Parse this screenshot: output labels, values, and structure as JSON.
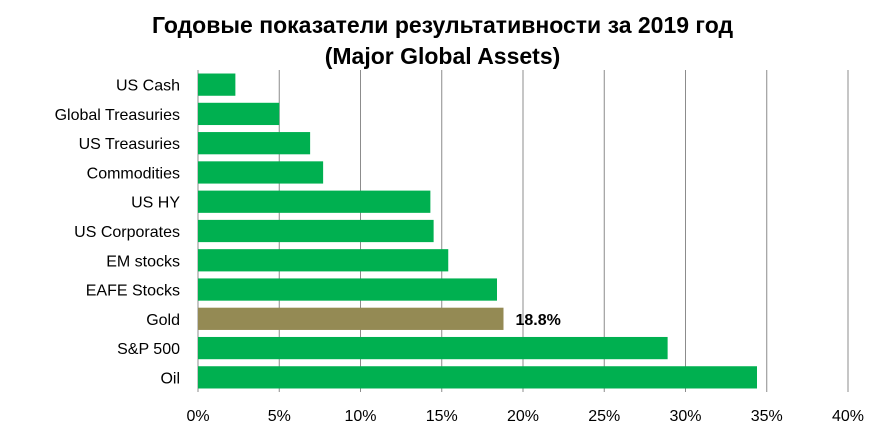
{
  "chart_data": {
    "type": "bar",
    "orientation": "horizontal",
    "title": "Годовые показатели результативности за 2019 год",
    "subtitle": "(Major Global Assets)",
    "categories": [
      "US Cash",
      "Global Treasuries",
      "US Treasuries",
      "Commodities",
      "US HY",
      "US Corporates",
      "EM stocks",
      "EAFE Stocks",
      "Gold",
      "S&P 500",
      "Oil"
    ],
    "values": [
      2.3,
      5.0,
      6.9,
      7.7,
      14.3,
      14.5,
      15.4,
      18.4,
      18.8,
      28.9,
      34.4
    ],
    "bar_colors": [
      "#00b050",
      "#00b050",
      "#00b050",
      "#00b050",
      "#00b050",
      "#00b050",
      "#00b050",
      "#00b050",
      "#948a54",
      "#00b050",
      "#00b050"
    ],
    "data_labels": [
      {
        "category": "Gold",
        "text": "18.8%"
      }
    ],
    "xlim": [
      0,
      40
    ],
    "xticks": [
      0,
      5,
      10,
      15,
      20,
      25,
      30,
      35,
      40
    ],
    "xtick_labels": [
      "0%",
      "5%",
      "10%",
      "15%",
      "20%",
      "25%",
      "30%",
      "35%",
      "40%"
    ],
    "xlabel": "",
    "ylabel": "",
    "grid": "vertical",
    "legend": "none"
  }
}
